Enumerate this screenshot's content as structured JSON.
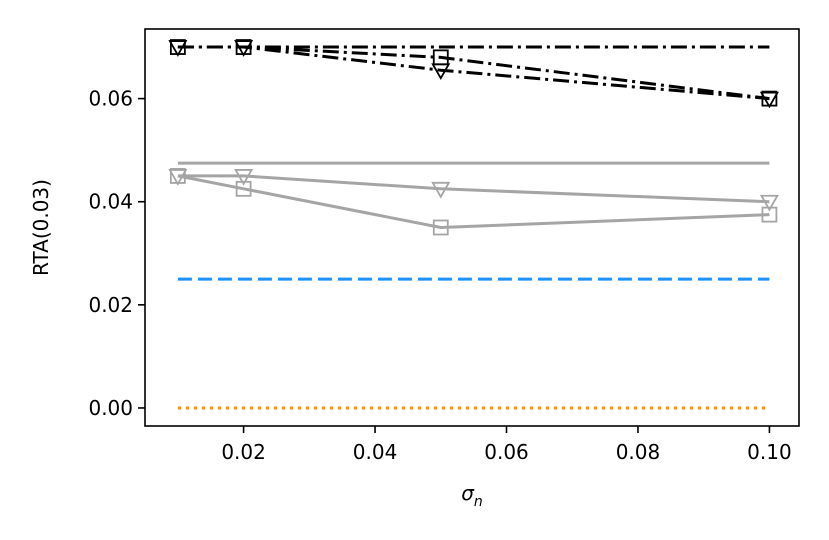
{
  "chart_data": {
    "type": "line",
    "xlabel": "σ",
    "xlabel_sub": "n",
    "ylabel": "RTA(0.03)",
    "xlim": [
      0.005,
      0.1045
    ],
    "ylim": [
      -0.0035,
      0.0735
    ],
    "xticks": [
      0.02,
      0.04,
      0.06,
      0.08,
      0.1
    ],
    "xtick_labels": [
      "0.02",
      "0.04",
      "0.06",
      "0.08",
      "0.10"
    ],
    "yticks": [
      0.0,
      0.02,
      0.04,
      0.06
    ],
    "ytick_labels": [
      "0.00",
      "0.02",
      "0.04",
      "0.06"
    ],
    "grid": false,
    "legend": "none",
    "series": [
      {
        "x": [
          0.01,
          0.02,
          0.05,
          0.1
        ],
        "y": [
          0.07,
          0.07,
          0.07,
          0.07
        ],
        "color": "#000000",
        "dash": "dashdot",
        "marker": "none"
      },
      {
        "x": [
          0.01,
          0.02,
          0.05,
          0.1
        ],
        "y": [
          0.07,
          0.07,
          0.068,
          0.06
        ],
        "color": "#000000",
        "dash": "dashdot",
        "marker": "square"
      },
      {
        "x": [
          0.01,
          0.02,
          0.05,
          0.1
        ],
        "y": [
          0.07,
          0.07,
          0.0655,
          0.06
        ],
        "color": "#000000",
        "dash": "dashdot",
        "marker": "triangle-down"
      },
      {
        "x": [
          0.01,
          0.1
        ],
        "y": [
          0.0475,
          0.0475
        ],
        "color": "#a5a5a5",
        "dash": "solid",
        "marker": "none"
      },
      {
        "x": [
          0.01,
          0.02,
          0.05,
          0.1
        ],
        "y": [
          0.045,
          0.045,
          0.0425,
          0.04
        ],
        "color": "#a5a5a5",
        "dash": "solid",
        "marker": "triangle-down"
      },
      {
        "x": [
          0.01,
          0.02,
          0.05,
          0.1
        ],
        "y": [
          0.045,
          0.0425,
          0.035,
          0.0375
        ],
        "color": "#a5a5a5",
        "dash": "solid",
        "marker": "square"
      },
      {
        "x": [
          0.01,
          0.1
        ],
        "y": [
          0.025,
          0.025
        ],
        "color": "#1e90ff",
        "dash": "dashed",
        "marker": "none"
      },
      {
        "x": [
          0.01,
          0.1
        ],
        "y": [
          0.0,
          0.0
        ],
        "color": "#ff8c00",
        "dash": "dotted",
        "marker": "none"
      }
    ]
  }
}
